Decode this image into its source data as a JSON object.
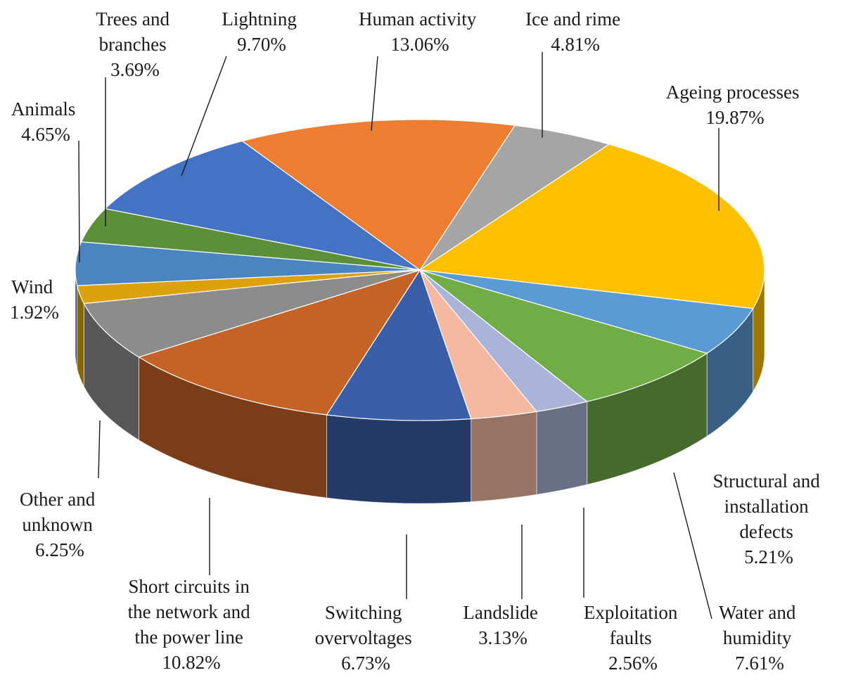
{
  "chart_data": {
    "type": "pie",
    "title": "",
    "start_category": "Ice and rime",
    "direction": "clockwise",
    "slices": [
      {
        "label": "Ice and rime",
        "value": 4.81,
        "value_label": "4.81%",
        "color": "#A5A5A5"
      },
      {
        "label": "Ageing processes",
        "value": 19.87,
        "value_label": "19.87%",
        "color": "#FFC000"
      },
      {
        "label": "Structural and installation defects",
        "value": 5.21,
        "value_label": "5.21%",
        "color": "#5B9BD5"
      },
      {
        "label": "Water and humidity",
        "value": 7.61,
        "value_label": "7.61%",
        "color": "#70AD47"
      },
      {
        "label": "Exploitation faults",
        "value": 2.56,
        "value_label": "2.56%",
        "color": "#A9B4D8"
      },
      {
        "label": "Landslide",
        "value": 3.13,
        "value_label": "3.13%",
        "color": "#F4B9A0"
      },
      {
        "label": "Switching overvoltages",
        "value": 6.73,
        "value_label": "6.73%",
        "color": "#3A5FA8"
      },
      {
        "label": "Short circuits in the network and the power line",
        "value": 10.82,
        "value_label": "10.82%",
        "color": "#C46325"
      },
      {
        "label": "Other and unknown",
        "value": 6.25,
        "value_label": "6.25%",
        "color": "#8C8C8C"
      },
      {
        "label": "Wind",
        "value": 1.92,
        "value_label": "1.92%",
        "color": "#DCA10B"
      },
      {
        "label": "Animals",
        "value": 4.65,
        "value_label": "4.65%",
        "color": "#4A85C2"
      },
      {
        "label": "Trees and branches",
        "value": 3.69,
        "value_label": "3.69%",
        "color": "#5B8F39"
      },
      {
        "label": "Lightning",
        "value": 9.7,
        "value_label": "9.70%",
        "color": "#4472C4"
      },
      {
        "label": "Human activity",
        "value": 13.06,
        "value_label": "13.06%",
        "color": "#ED7D31"
      }
    ]
  }
}
